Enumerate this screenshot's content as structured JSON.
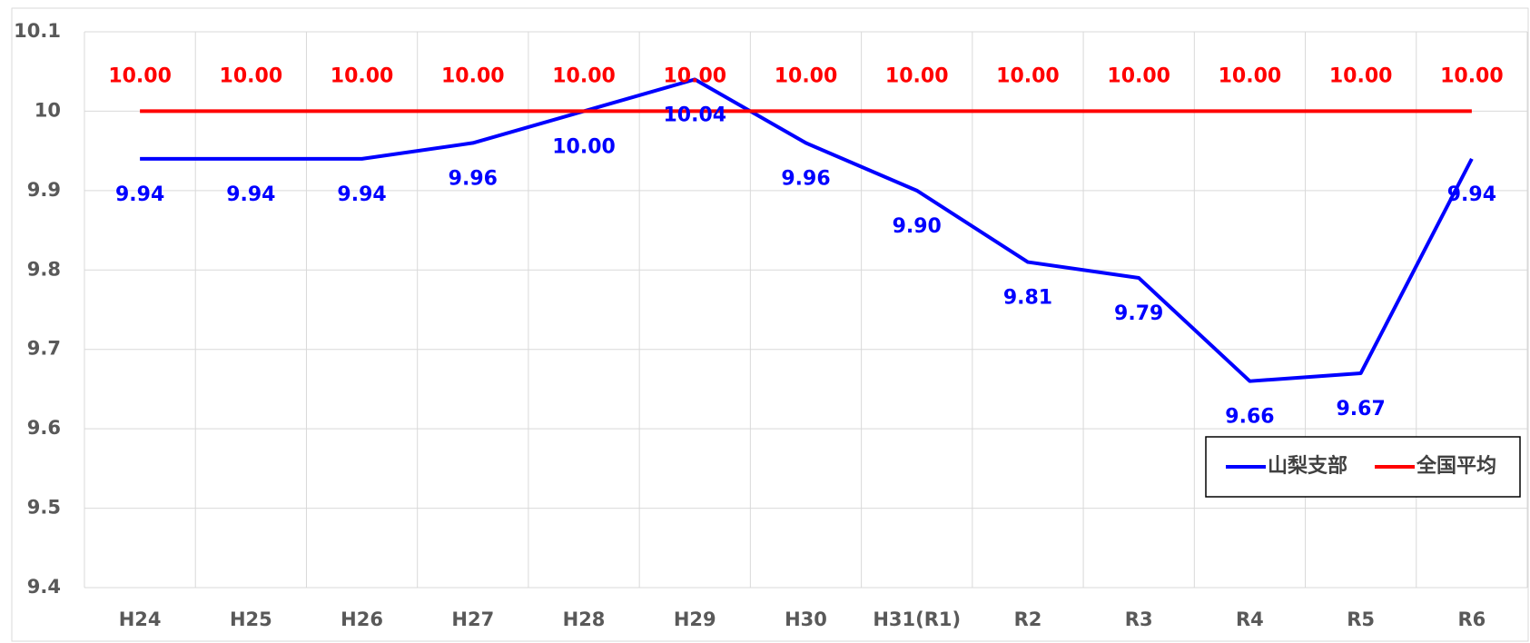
{
  "chart_data": {
    "type": "line",
    "categories": [
      "H24",
      "H25",
      "H26",
      "H27",
      "H28",
      "H29",
      "H30",
      "H31(R1)",
      "R2",
      "R3",
      "R4",
      "R5",
      "R6"
    ],
    "series": [
      {
        "name": "山梨支部",
        "color": "#0000ff",
        "values": [
          9.94,
          9.94,
          9.94,
          9.96,
          10.0,
          10.04,
          9.96,
          9.9,
          9.81,
          9.79,
          9.66,
          9.67,
          9.94
        ],
        "value_labels": [
          "9.94",
          "9.94",
          "9.94",
          "9.96",
          "10.00",
          "10.04",
          "9.96",
          "9.90",
          "9.81",
          "9.79",
          "9.66",
          "9.67",
          "9.94"
        ]
      },
      {
        "name": "全国平均",
        "color": "#ff0000",
        "values": [
          10,
          10,
          10,
          10,
          10,
          10,
          10,
          10,
          10,
          10,
          10,
          10,
          10
        ],
        "value_labels": [
          "10.00",
          "10.00",
          "10.00",
          "10.00",
          "10.00",
          "10.00",
          "10.00",
          "10.00",
          "10.00",
          "10.00",
          "10.00",
          "10.00",
          "10.00"
        ]
      }
    ],
    "ylim": [
      9.4,
      10.1
    ],
    "yticks": [
      9.4,
      9.5,
      9.6,
      9.7,
      9.8,
      9.9,
      10,
      10.1
    ],
    "grid": true,
    "legend": "lower right"
  }
}
